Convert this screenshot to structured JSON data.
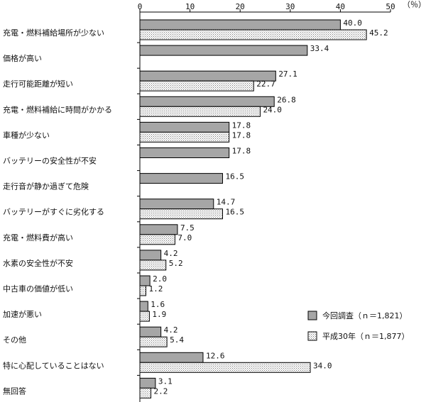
{
  "chart_data": {
    "type": "bar",
    "orientation": "horizontal",
    "unit": "（％）",
    "xlim": [
      0,
      50
    ],
    "xticks": [
      "0",
      "10",
      "20",
      "30",
      "40",
      "50"
    ],
    "grid": false,
    "legend_position": "bottom-right",
    "colors": {
      "series1": "#a6a6a6",
      "series2_bg": "#ffffff",
      "series2_dot": "#7a7a7a",
      "border": "#000000"
    },
    "series": [
      {
        "name": "今回調査（ｎ＝1,821）"
      },
      {
        "name": "平成30年（ｎ＝1,877）"
      }
    ],
    "categories": [
      {
        "label": "充電・燃料補給場所が少ない",
        "values": [
          40.0,
          45.2
        ],
        "labels": [
          "40.0",
          "45.2"
        ]
      },
      {
        "label": "価格が高い",
        "values": [
          33.4,
          null
        ],
        "labels": [
          "33.4",
          ""
        ]
      },
      {
        "label": "走行可能距離が短い",
        "values": [
          27.1,
          22.7
        ],
        "labels": [
          "27.1",
          "22.7"
        ]
      },
      {
        "label": "充電・燃料補給に時間がかかる",
        "values": [
          26.8,
          24.0
        ],
        "labels": [
          "26.8",
          "24.0"
        ]
      },
      {
        "label": "車種が少ない",
        "values": [
          17.8,
          17.8
        ],
        "labels": [
          "17.8",
          "17.8"
        ]
      },
      {
        "label": "バッテリーの安全性が不安",
        "values": [
          17.8,
          null
        ],
        "labels": [
          "17.8",
          ""
        ]
      },
      {
        "label": "走行音が静か過ぎて危険",
        "values": [
          16.5,
          null
        ],
        "labels": [
          "16.5",
          ""
        ]
      },
      {
        "label": "バッテリーがすぐに劣化する",
        "values": [
          14.7,
          16.5
        ],
        "labels": [
          "14.7",
          "16.5"
        ]
      },
      {
        "label": "充電・燃料費が高い",
        "values": [
          7.5,
          7.0
        ],
        "labels": [
          "7.5",
          "7.0"
        ]
      },
      {
        "label": "水素の安全性が不安",
        "values": [
          4.2,
          5.2
        ],
        "labels": [
          "4.2",
          "5.2"
        ]
      },
      {
        "label": "中古車の価値が低い",
        "values": [
          2.0,
          1.2
        ],
        "labels": [
          "2.0",
          "1.2"
        ]
      },
      {
        "label": "加速が悪い",
        "values": [
          1.6,
          1.9
        ],
        "labels": [
          "1.6",
          "1.9"
        ]
      },
      {
        "label": "その他",
        "values": [
          4.2,
          5.4
        ],
        "labels": [
          "4.2",
          "5.4"
        ]
      },
      {
        "label": "特に心配していることはない",
        "values": [
          12.6,
          34.0
        ],
        "labels": [
          "12.6",
          "34.0"
        ]
      },
      {
        "label": "無回答",
        "values": [
          3.1,
          2.2
        ],
        "labels": [
          "3.1",
          "2.2"
        ]
      }
    ]
  }
}
